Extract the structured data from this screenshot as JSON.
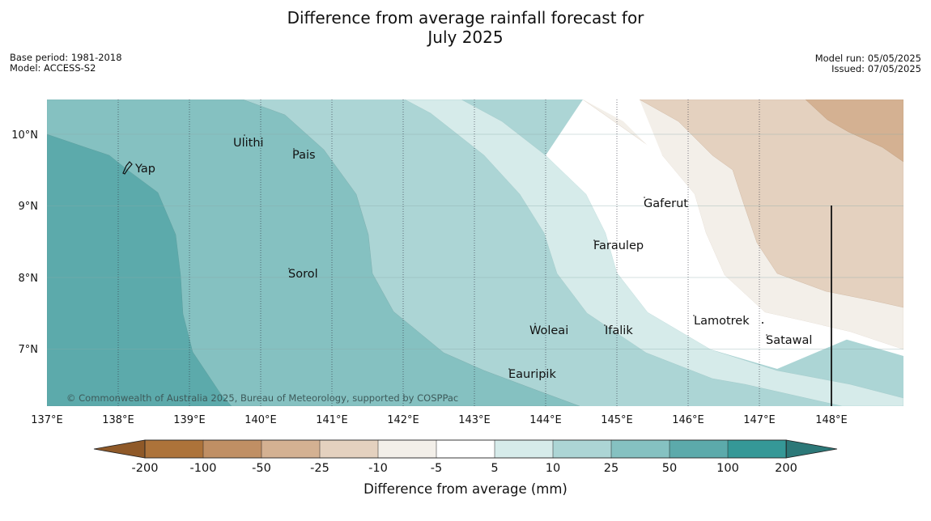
{
  "title": {
    "line1": "Difference from average rainfall forecast for",
    "line2": "July 2025"
  },
  "meta_left": {
    "base_period": "Base period: 1981-2018",
    "model": "Model: ACCESS-S2"
  },
  "meta_right": {
    "model_run": "Model run: 05/05/2025",
    "issued": "Issued: 07/05/2025"
  },
  "map": {
    "lat_labels": [
      "10°N",
      "9°N",
      "8°N",
      "7°N"
    ],
    "lon_labels": [
      "137°E",
      "138°E",
      "139°E",
      "140°E",
      "141°E",
      "142°E",
      "143°E",
      "144°E",
      "145°E",
      "146°E",
      "147°E",
      "148°E"
    ],
    "places": {
      "ulithi": "Ulithi",
      "yap": "Yap",
      "pais": "Pais",
      "gaferut": "Gaferut",
      "faraulep": "Faraulep",
      "sorol": "Sorol",
      "lamotrek": "Lamotrek",
      "woleai": "Woleai",
      "ifalik": "Ifalik",
      "satawal": "Satawal",
      "eauripik": "Eauripik"
    },
    "copyright": "© Commonwealth of Australia 2025, Bureau of Meteorology, supported by COSPPac"
  },
  "colorbar": {
    "labels": [
      "-200",
      "-100",
      "-50",
      "-25",
      "-10",
      "-5",
      "5",
      "10",
      "25",
      "50",
      "100",
      "200"
    ],
    "colors": [
      "#ad733a",
      "#c08f64",
      "#d4b192",
      "#e4d1bf",
      "#f3efe9",
      "#ffffff",
      "#d6ebea",
      "#acd5d5",
      "#85c1c1",
      "#5caaab",
      "#359897"
    ],
    "under_color": "#8f5928",
    "over_color": "#2c7878",
    "title": "Difference from average (mm)"
  }
}
